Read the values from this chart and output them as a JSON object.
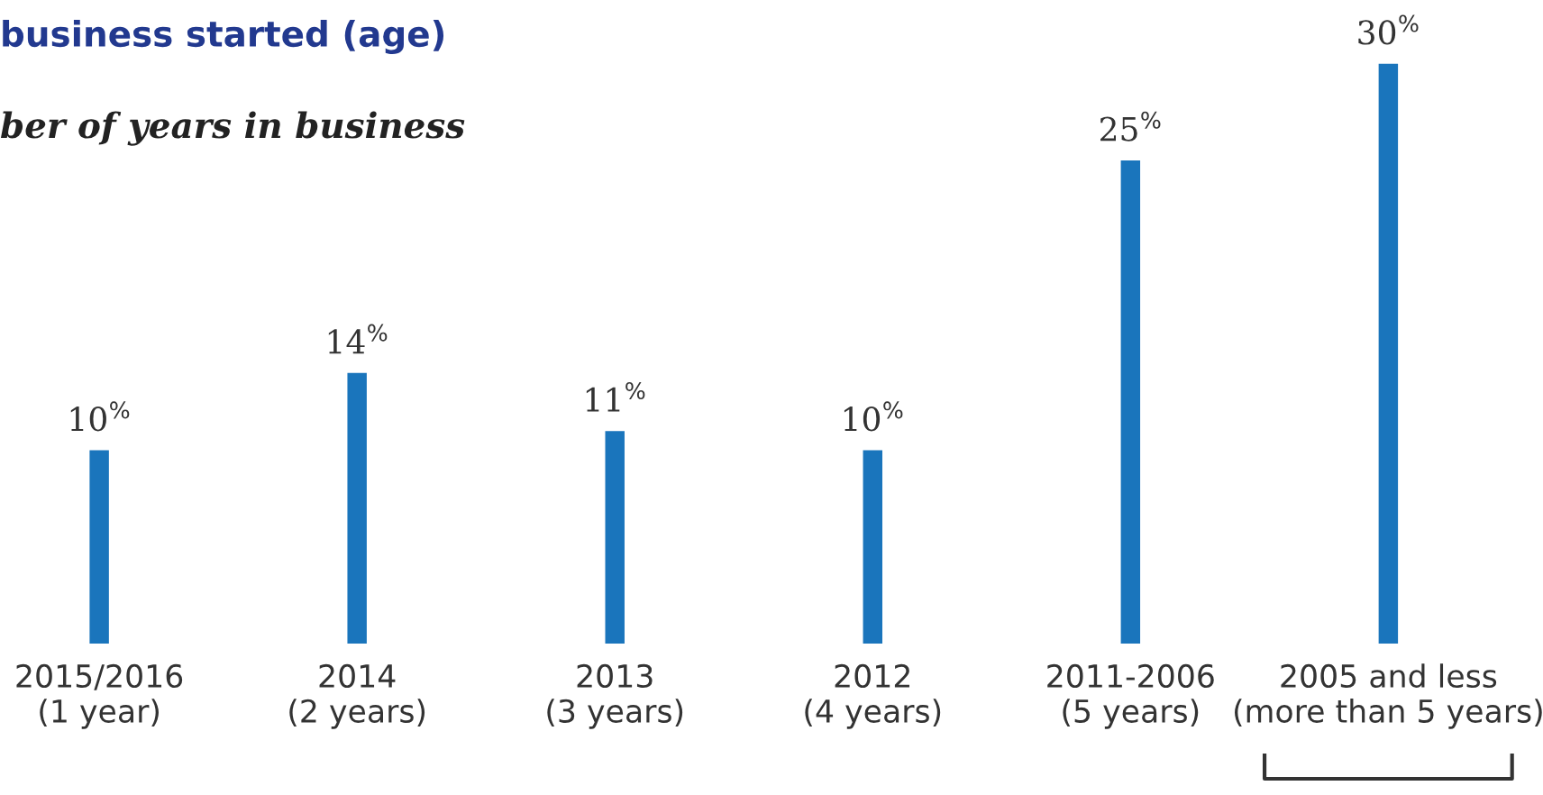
{
  "chart_data": {
    "type": "bar",
    "title": "business started (age)",
    "subtitle": "ber of years in business",
    "categories": [
      "2015/2016\n(1 year)",
      "2014\n(2 years)",
      "2013\n(3 years)",
      "2012\n(4 years)",
      "2011-2006\n(5 years)",
      "2005 and less\n(more than 5 years)"
    ],
    "values": [
      10,
      14,
      11,
      10,
      25,
      30
    ],
    "value_labels": [
      "10$^{%}$",
      "14$^{%}$",
      "11$^{%}$",
      "10$^{%}$",
      "25$^{%}$",
      "30$^{%}$"
    ],
    "color": "#1a75bc",
    "grid": false,
    "legend": false
  }
}
